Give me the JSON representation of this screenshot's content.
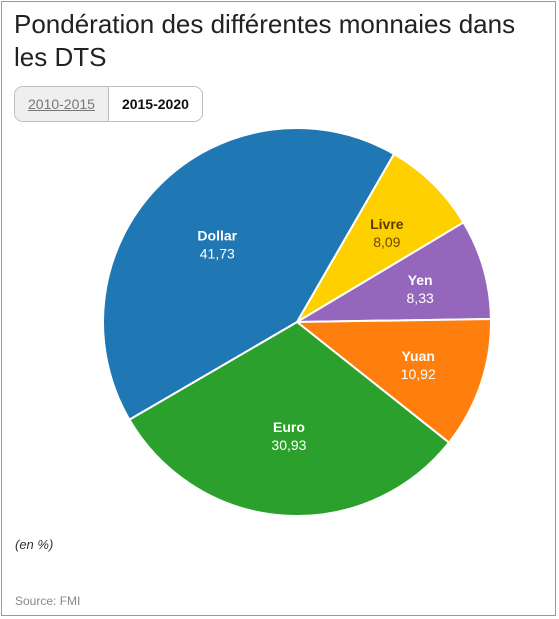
{
  "title": "Pondération des différentes monnaies dans les DTS",
  "tabs": [
    {
      "label": "2010-2015",
      "active": false
    },
    {
      "label": "2015-2020",
      "active": true
    }
  ],
  "unit_note": "(en %)",
  "source": "Source: FMI",
  "chart_data": {
    "type": "pie",
    "title": "Pondération des différentes monnaies dans les DTS",
    "slices": [
      {
        "label": "Livre",
        "value": 8.09,
        "value_text": "8,09",
        "color": "#ffd000"
      },
      {
        "label": "Yen",
        "value": 8.33,
        "value_text": "8,33",
        "color": "#9467bd"
      },
      {
        "label": "Yuan",
        "value": 10.92,
        "value_text": "10,92",
        "color": "#ff7f0e"
      },
      {
        "label": "Euro",
        "value": 30.93,
        "value_text": "30,93",
        "color": "#2ca02c"
      },
      {
        "label": "Dollar",
        "value": 41.73,
        "value_text": "41,73",
        "color": "#1f77b4"
      }
    ]
  }
}
